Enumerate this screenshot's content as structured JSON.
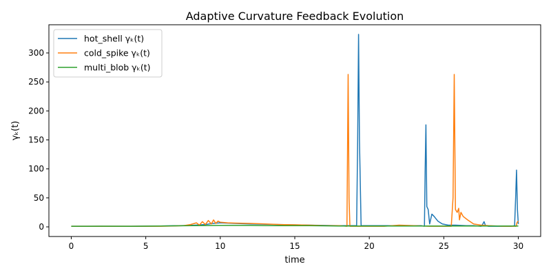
{
  "chart_data": {
    "type": "line",
    "title": "Adaptive Curvature Feedback Evolution",
    "xlabel": "time",
    "ylabel": "γₖ(t)",
    "xlim": [
      -1.5,
      31.5
    ],
    "ylim": [
      -16.6,
      348.6
    ],
    "xticks": [
      0,
      5,
      10,
      15,
      20,
      25,
      30
    ],
    "yticks": [
      0,
      50,
      100,
      150,
      200,
      250,
      300
    ],
    "grid": false,
    "legend": "top-left",
    "series": [
      {
        "name": "hot_shell γₖ(t)",
        "color": "#1f77b4",
        "x": [
          0,
          2,
          4,
          6,
          8,
          9,
          9.5,
          10,
          11,
          12,
          14,
          16,
          18,
          19.0,
          19.15,
          19.22,
          19.28,
          19.34,
          19.45,
          20,
          21,
          22,
          23,
          23.5,
          23.7,
          23.75,
          23.8,
          23.86,
          23.95,
          24.05,
          24.2,
          24.35,
          24.6,
          24.9,
          25.3,
          25.8,
          26.5,
          27,
          27.5,
          27.62,
          27.7,
          27.8,
          28,
          29,
          29.5,
          29.75,
          29.82,
          29.88,
          29.94,
          30.0
        ],
        "y": [
          1,
          1,
          1,
          1.5,
          2.5,
          4,
          6,
          7,
          6,
          5,
          4,
          3,
          2,
          2,
          2,
          150,
          332,
          150,
          2,
          2,
          2,
          2,
          2,
          2,
          1,
          100,
          176,
          35,
          30,
          5,
          22,
          18,
          10,
          5,
          3,
          3,
          2,
          2,
          1,
          5,
          9,
          2,
          1,
          1,
          1,
          2,
          50,
          98,
          30,
          5
        ]
      },
      {
        "name": "cold_spike γₖ(t)",
        "color": "#ff7f0e",
        "x": [
          0,
          2,
          4,
          6,
          7.5,
          8,
          8.4,
          8.6,
          8.8,
          9.0,
          9.2,
          9.4,
          9.55,
          9.7,
          9.85,
          10.0,
          10.5,
          11,
          12,
          13,
          14,
          15,
          16,
          17,
          18,
          18.5,
          18.58,
          18.64,
          18.7,
          18.78,
          19,
          20,
          21,
          22,
          23,
          24,
          25,
          25.5,
          25.62,
          25.7,
          25.78,
          25.9,
          26.0,
          26.05,
          26.15,
          26.3,
          26.6,
          27,
          27.5,
          28,
          29,
          29.5,
          29.85,
          29.92,
          30.0
        ],
        "y": [
          1,
          1,
          1,
          1,
          2,
          4,
          7,
          3,
          9,
          4,
          11,
          5,
          12,
          6,
          10,
          8,
          7,
          6.5,
          6,
          5,
          4,
          3.5,
          3,
          2,
          2,
          1,
          263,
          50,
          1,
          1,
          1,
          1,
          1,
          3,
          2,
          1,
          1,
          1,
          50,
          263,
          30,
          25,
          32,
          12,
          25,
          18,
          12,
          5,
          3,
          2,
          1,
          1,
          1,
          8,
          10
        ]
      },
      {
        "name": "multi_blob γₖ(t)",
        "color": "#2ca02c",
        "x": [
          0,
          2,
          4,
          6,
          8,
          10,
          12,
          14,
          16,
          18,
          20,
          22,
          24,
          26,
          28,
          30
        ],
        "y": [
          1,
          1.2,
          1,
          1.5,
          2,
          2.5,
          2.5,
          2,
          2,
          1.5,
          1.5,
          1.5,
          1.5,
          1.5,
          1.5,
          1.5
        ]
      }
    ]
  }
}
